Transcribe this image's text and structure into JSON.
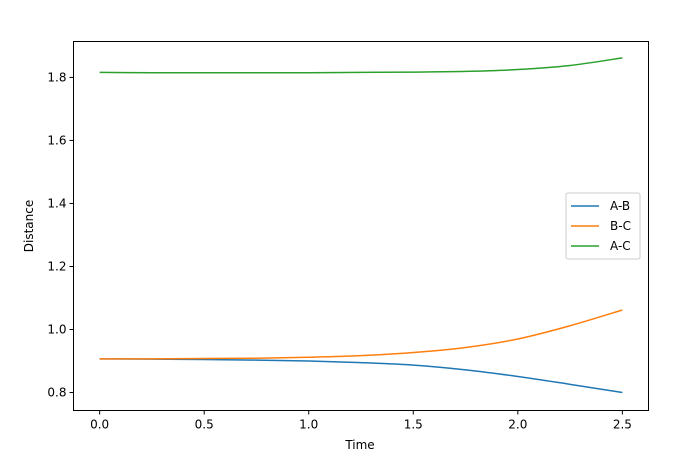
{
  "chart_data": {
    "type": "line",
    "title": "",
    "xlabel": "Time",
    "ylabel": "Distance",
    "xlim": [
      -0.125,
      2.625
    ],
    "ylim": [
      0.743,
      1.914
    ],
    "xticks": [
      0.0,
      0.5,
      1.0,
      1.5,
      2.0,
      2.5
    ],
    "xtick_labels": [
      "0.0",
      "0.5",
      "1.0",
      "1.5",
      "2.0",
      "2.5"
    ],
    "yticks": [
      0.8,
      1.0,
      1.2,
      1.4,
      1.6,
      1.8
    ],
    "ytick_labels": [
      "0.8",
      "1.0",
      "1.2",
      "1.4",
      "1.6",
      "1.8"
    ],
    "grid": false,
    "legend_placement": "center-right",
    "x": [
      0,
      0.25,
      0.5,
      0.75,
      1.0,
      1.25,
      1.5,
      1.75,
      2.0,
      2.25,
      2.5
    ],
    "series": [
      {
        "name": "A-B",
        "color": "#1f77b4",
        "values": [
          0.907,
          0.906,
          0.905,
          0.903,
          0.9,
          0.895,
          0.887,
          0.872,
          0.851,
          0.826,
          0.8
        ]
      },
      {
        "name": "B-C",
        "color": "#ff7f0e",
        "values": [
          0.907,
          0.907,
          0.908,
          0.909,
          0.912,
          0.917,
          0.927,
          0.943,
          0.97,
          1.012,
          1.062
        ]
      },
      {
        "name": "A-C",
        "color": "#2ca02c",
        "values": [
          1.816,
          1.815,
          1.815,
          1.815,
          1.815,
          1.816,
          1.817,
          1.819,
          1.825,
          1.838,
          1.862
        ]
      }
    ]
  }
}
